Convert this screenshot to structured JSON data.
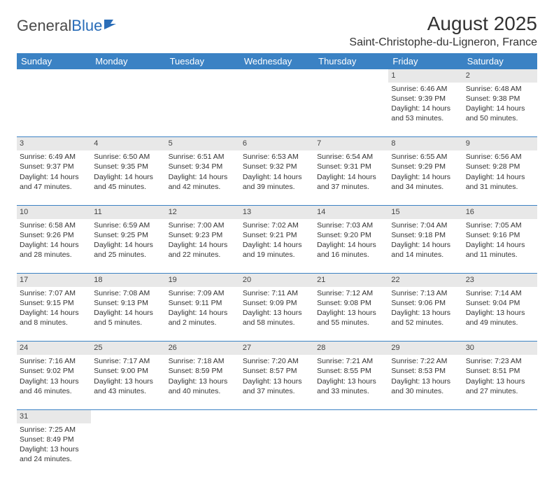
{
  "brand": {
    "name1": "General",
    "name2": "Blue"
  },
  "title": "August 2025",
  "location": "Saint-Christophe-du-Ligneron, France",
  "colors": {
    "header_bg": "#3b82c4",
    "header_text": "#ffffff",
    "daynum_bg": "#e8e8e8",
    "row_border": "#3b82c4",
    "text": "#333333",
    "logo_gray": "#4a4a4a",
    "logo_blue": "#2a6db8"
  },
  "day_labels": [
    "Sunday",
    "Monday",
    "Tuesday",
    "Wednesday",
    "Thursday",
    "Friday",
    "Saturday"
  ],
  "weeks": [
    [
      null,
      null,
      null,
      null,
      null,
      {
        "n": "1",
        "sunrise": "Sunrise: 6:46 AM",
        "sunset": "Sunset: 9:39 PM",
        "day1": "Daylight: 14 hours",
        "day2": "and 53 minutes."
      },
      {
        "n": "2",
        "sunrise": "Sunrise: 6:48 AM",
        "sunset": "Sunset: 9:38 PM",
        "day1": "Daylight: 14 hours",
        "day2": "and 50 minutes."
      }
    ],
    [
      {
        "n": "3",
        "sunrise": "Sunrise: 6:49 AM",
        "sunset": "Sunset: 9:37 PM",
        "day1": "Daylight: 14 hours",
        "day2": "and 47 minutes."
      },
      {
        "n": "4",
        "sunrise": "Sunrise: 6:50 AM",
        "sunset": "Sunset: 9:35 PM",
        "day1": "Daylight: 14 hours",
        "day2": "and 45 minutes."
      },
      {
        "n": "5",
        "sunrise": "Sunrise: 6:51 AM",
        "sunset": "Sunset: 9:34 PM",
        "day1": "Daylight: 14 hours",
        "day2": "and 42 minutes."
      },
      {
        "n": "6",
        "sunrise": "Sunrise: 6:53 AM",
        "sunset": "Sunset: 9:32 PM",
        "day1": "Daylight: 14 hours",
        "day2": "and 39 minutes."
      },
      {
        "n": "7",
        "sunrise": "Sunrise: 6:54 AM",
        "sunset": "Sunset: 9:31 PM",
        "day1": "Daylight: 14 hours",
        "day2": "and 37 minutes."
      },
      {
        "n": "8",
        "sunrise": "Sunrise: 6:55 AM",
        "sunset": "Sunset: 9:29 PM",
        "day1": "Daylight: 14 hours",
        "day2": "and 34 minutes."
      },
      {
        "n": "9",
        "sunrise": "Sunrise: 6:56 AM",
        "sunset": "Sunset: 9:28 PM",
        "day1": "Daylight: 14 hours",
        "day2": "and 31 minutes."
      }
    ],
    [
      {
        "n": "10",
        "sunrise": "Sunrise: 6:58 AM",
        "sunset": "Sunset: 9:26 PM",
        "day1": "Daylight: 14 hours",
        "day2": "and 28 minutes."
      },
      {
        "n": "11",
        "sunrise": "Sunrise: 6:59 AM",
        "sunset": "Sunset: 9:25 PM",
        "day1": "Daylight: 14 hours",
        "day2": "and 25 minutes."
      },
      {
        "n": "12",
        "sunrise": "Sunrise: 7:00 AM",
        "sunset": "Sunset: 9:23 PM",
        "day1": "Daylight: 14 hours",
        "day2": "and 22 minutes."
      },
      {
        "n": "13",
        "sunrise": "Sunrise: 7:02 AM",
        "sunset": "Sunset: 9:21 PM",
        "day1": "Daylight: 14 hours",
        "day2": "and 19 minutes."
      },
      {
        "n": "14",
        "sunrise": "Sunrise: 7:03 AM",
        "sunset": "Sunset: 9:20 PM",
        "day1": "Daylight: 14 hours",
        "day2": "and 16 minutes."
      },
      {
        "n": "15",
        "sunrise": "Sunrise: 7:04 AM",
        "sunset": "Sunset: 9:18 PM",
        "day1": "Daylight: 14 hours",
        "day2": "and 14 minutes."
      },
      {
        "n": "16",
        "sunrise": "Sunrise: 7:05 AM",
        "sunset": "Sunset: 9:16 PM",
        "day1": "Daylight: 14 hours",
        "day2": "and 11 minutes."
      }
    ],
    [
      {
        "n": "17",
        "sunrise": "Sunrise: 7:07 AM",
        "sunset": "Sunset: 9:15 PM",
        "day1": "Daylight: 14 hours",
        "day2": "and 8 minutes."
      },
      {
        "n": "18",
        "sunrise": "Sunrise: 7:08 AM",
        "sunset": "Sunset: 9:13 PM",
        "day1": "Daylight: 14 hours",
        "day2": "and 5 minutes."
      },
      {
        "n": "19",
        "sunrise": "Sunrise: 7:09 AM",
        "sunset": "Sunset: 9:11 PM",
        "day1": "Daylight: 14 hours",
        "day2": "and 2 minutes."
      },
      {
        "n": "20",
        "sunrise": "Sunrise: 7:11 AM",
        "sunset": "Sunset: 9:09 PM",
        "day1": "Daylight: 13 hours",
        "day2": "and 58 minutes."
      },
      {
        "n": "21",
        "sunrise": "Sunrise: 7:12 AM",
        "sunset": "Sunset: 9:08 PM",
        "day1": "Daylight: 13 hours",
        "day2": "and 55 minutes."
      },
      {
        "n": "22",
        "sunrise": "Sunrise: 7:13 AM",
        "sunset": "Sunset: 9:06 PM",
        "day1": "Daylight: 13 hours",
        "day2": "and 52 minutes."
      },
      {
        "n": "23",
        "sunrise": "Sunrise: 7:14 AM",
        "sunset": "Sunset: 9:04 PM",
        "day1": "Daylight: 13 hours",
        "day2": "and 49 minutes."
      }
    ],
    [
      {
        "n": "24",
        "sunrise": "Sunrise: 7:16 AM",
        "sunset": "Sunset: 9:02 PM",
        "day1": "Daylight: 13 hours",
        "day2": "and 46 minutes."
      },
      {
        "n": "25",
        "sunrise": "Sunrise: 7:17 AM",
        "sunset": "Sunset: 9:00 PM",
        "day1": "Daylight: 13 hours",
        "day2": "and 43 minutes."
      },
      {
        "n": "26",
        "sunrise": "Sunrise: 7:18 AM",
        "sunset": "Sunset: 8:59 PM",
        "day1": "Daylight: 13 hours",
        "day2": "and 40 minutes."
      },
      {
        "n": "27",
        "sunrise": "Sunrise: 7:20 AM",
        "sunset": "Sunset: 8:57 PM",
        "day1": "Daylight: 13 hours",
        "day2": "and 37 minutes."
      },
      {
        "n": "28",
        "sunrise": "Sunrise: 7:21 AM",
        "sunset": "Sunset: 8:55 PM",
        "day1": "Daylight: 13 hours",
        "day2": "and 33 minutes."
      },
      {
        "n": "29",
        "sunrise": "Sunrise: 7:22 AM",
        "sunset": "Sunset: 8:53 PM",
        "day1": "Daylight: 13 hours",
        "day2": "and 30 minutes."
      },
      {
        "n": "30",
        "sunrise": "Sunrise: 7:23 AM",
        "sunset": "Sunset: 8:51 PM",
        "day1": "Daylight: 13 hours",
        "day2": "and 27 minutes."
      }
    ],
    [
      {
        "n": "31",
        "sunrise": "Sunrise: 7:25 AM",
        "sunset": "Sunset: 8:49 PM",
        "day1": "Daylight: 13 hours",
        "day2": "and 24 minutes."
      },
      null,
      null,
      null,
      null,
      null,
      null
    ]
  ]
}
